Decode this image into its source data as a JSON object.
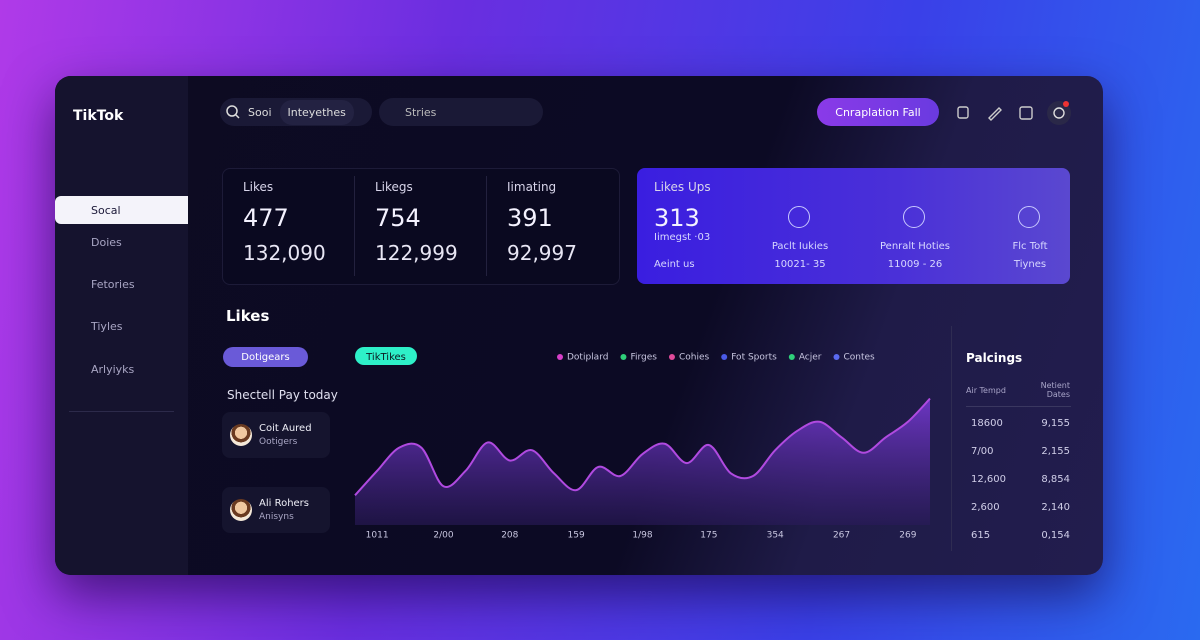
{
  "sidebar": {
    "logo": "TikTok",
    "items": [
      "Socal",
      "Doies",
      "Fetories",
      "Tiyles",
      "Arlyiyks"
    ]
  },
  "topbar": {
    "search_label": "Sooi",
    "search_value": "Inteyethes",
    "search2": "Stries",
    "button": "Cnraplation Fall"
  },
  "stats": [
    {
      "label": "Likes",
      "value": "477",
      "total": "132,090"
    },
    {
      "label": "Likegs",
      "value": "754",
      "total": "122,999"
    },
    {
      "label": "Iimating",
      "value": "391",
      "total": "92,997"
    }
  ],
  "highlight": {
    "title": "Likes Ups",
    "value": "313",
    "sub": "Iimegst ·03",
    "footer": "Aeint us",
    "items": [
      {
        "label": "Paclt Iukies",
        "value": "10021- 35"
      },
      {
        "label": "Penralt Hoties",
        "value": "11009 - 26"
      },
      {
        "label": "Flc Toft",
        "value": "Tiynes"
      }
    ]
  },
  "section_title": "Likes",
  "filter": "Dotigears",
  "people_title": "Shectell Pay today",
  "people": [
    {
      "name": "Coit Aured",
      "role": "Ootigers"
    },
    {
      "name": "Ali Rohers",
      "role": "Anisyns"
    }
  ],
  "chart_data": {
    "type": "area",
    "tag": "TikTikes",
    "legend": [
      {
        "name": "Dotiplard",
        "color": "#d63fc8"
      },
      {
        "name": "Firges",
        "color": "#2fd07a"
      },
      {
        "name": "Cohies",
        "color": "#e04a9a"
      },
      {
        "name": "Fot Sports",
        "color": "#4a5ae8"
      },
      {
        "name": "Acjer",
        "color": "#2fd07a"
      },
      {
        "name": "Contes",
        "color": "#5a6af0"
      }
    ],
    "categories": [
      null,
      "1011",
      null,
      null,
      "2/00",
      null,
      null,
      "208",
      null,
      null,
      "159",
      null,
      null,
      "1/98",
      null,
      null,
      "175",
      null,
      null,
      "354",
      null,
      null,
      "267",
      null,
      null,
      "269",
      null
    ],
    "values": [
      23,
      42,
      60,
      60,
      30,
      42,
      64,
      50,
      58,
      40,
      27,
      45,
      38,
      55,
      63,
      48,
      62,
      40,
      38,
      58,
      73,
      80,
      68,
      56,
      68,
      80,
      98
    ],
    "color": "#b04ae0",
    "ylim": [
      0,
      100
    ]
  },
  "ranking": {
    "title": "Palcings",
    "headers": [
      "Air Tempd",
      "Netient Dates"
    ],
    "rows": [
      [
        "18600",
        "9,155"
      ],
      [
        "7/00",
        "2,155"
      ],
      [
        "12,600",
        "8,854"
      ],
      [
        "2,600",
        "2,140"
      ],
      [
        "615",
        "0,154"
      ]
    ]
  }
}
